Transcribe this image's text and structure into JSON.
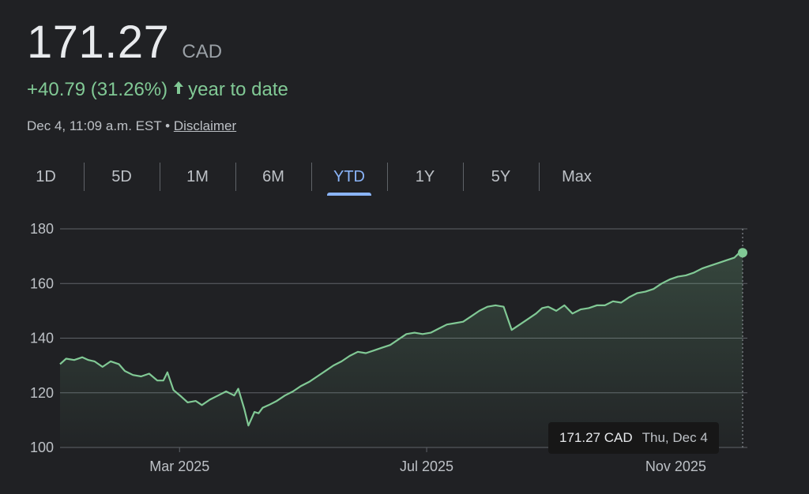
{
  "quote": {
    "price": "171.27",
    "currency": "CAD",
    "change": "+40.79 (31.26%)",
    "change_period": "year to date",
    "timestamp": "Dec 4, 11:09 a.m. EST",
    "separator": "•",
    "disclaimer": "Disclaimer"
  },
  "tabs": [
    {
      "label": "1D",
      "active": false
    },
    {
      "label": "5D",
      "active": false
    },
    {
      "label": "1M",
      "active": false
    },
    {
      "label": "6M",
      "active": false
    },
    {
      "label": "YTD",
      "active": true
    },
    {
      "label": "1Y",
      "active": false
    },
    {
      "label": "5Y",
      "active": false
    },
    {
      "label": "Max",
      "active": false
    }
  ],
  "tooltip": {
    "value": "171.27 CAD",
    "date": "Thu, Dec 4"
  },
  "colors": {
    "background": "#202124",
    "line": "#81c995",
    "positive": "#81c995",
    "active_tab": "#8ab4f8",
    "grid": "#5f6368"
  },
  "chart_data": {
    "type": "area",
    "ylim": [
      100,
      180
    ],
    "yticks": [
      180,
      160,
      140,
      120,
      100
    ],
    "xlim": [
      "2025-01-01",
      "2025-12-04"
    ],
    "xticks": [
      {
        "label": "Mar 2025",
        "date": "2025-03-01"
      },
      {
        "label": "Jul 2025",
        "date": "2025-07-01"
      },
      {
        "label": "Nov 2025",
        "date": "2025-11-01"
      }
    ],
    "grid": true,
    "series": [
      {
        "x": [
          "2025-01-01",
          "2025-01-04",
          "2025-01-08",
          "2025-01-12",
          "2025-01-15",
          "2025-01-18",
          "2025-01-22",
          "2025-01-26",
          "2025-01-30",
          "2025-02-02",
          "2025-02-06",
          "2025-02-10",
          "2025-02-14",
          "2025-02-18",
          "2025-02-21",
          "2025-02-23",
          "2025-02-26",
          "2025-03-02",
          "2025-03-05",
          "2025-03-09",
          "2025-03-12",
          "2025-03-16",
          "2025-03-20",
          "2025-03-24",
          "2025-03-28",
          "2025-03-30",
          "2025-04-02",
          "2025-04-04",
          "2025-04-07",
          "2025-04-09",
          "2025-04-11",
          "2025-04-14",
          "2025-04-18",
          "2025-04-22",
          "2025-04-26",
          "2025-04-30",
          "2025-05-04",
          "2025-05-08",
          "2025-05-12",
          "2025-05-16",
          "2025-05-20",
          "2025-05-24",
          "2025-05-28",
          "2025-06-01",
          "2025-06-05",
          "2025-06-09",
          "2025-06-13",
          "2025-06-17",
          "2025-06-21",
          "2025-06-25",
          "2025-06-29",
          "2025-07-03",
          "2025-07-07",
          "2025-07-11",
          "2025-07-15",
          "2025-07-19",
          "2025-07-23",
          "2025-07-27",
          "2025-07-31",
          "2025-08-04",
          "2025-08-08",
          "2025-08-12",
          "2025-08-16",
          "2025-08-20",
          "2025-08-24",
          "2025-08-27",
          "2025-08-30",
          "2025-09-03",
          "2025-09-07",
          "2025-09-11",
          "2025-09-15",
          "2025-09-19",
          "2025-09-23",
          "2025-09-27",
          "2025-10-01",
          "2025-10-05",
          "2025-10-09",
          "2025-10-13",
          "2025-10-17",
          "2025-10-21",
          "2025-10-25",
          "2025-10-29",
          "2025-11-02",
          "2025-11-06",
          "2025-11-10",
          "2025-11-14",
          "2025-11-18",
          "2025-11-22",
          "2025-11-26",
          "2025-11-30",
          "2025-12-02",
          "2025-12-04"
        ],
        "y": [
          130.5,
          132.5,
          132.0,
          133.0,
          132.0,
          131.5,
          129.5,
          131.5,
          130.5,
          128.0,
          126.5,
          126.0,
          127.0,
          124.5,
          124.5,
          127.5,
          121.0,
          118.5,
          116.5,
          117.0,
          115.5,
          117.5,
          119.0,
          120.5,
          119.0,
          121.5,
          114.0,
          108.0,
          113.0,
          112.5,
          114.5,
          115.5,
          117.0,
          119.0,
          120.5,
          122.5,
          124.0,
          126.0,
          128.0,
          130.0,
          131.5,
          133.5,
          135.0,
          134.5,
          135.5,
          136.5,
          137.5,
          139.5,
          141.5,
          142.0,
          141.5,
          142.0,
          143.5,
          145.0,
          145.5,
          146.0,
          148.0,
          150.0,
          151.5,
          152.0,
          151.5,
          143.0,
          145.0,
          147.0,
          149.0,
          151.0,
          151.5,
          150.0,
          152.0,
          149.0,
          150.5,
          151.0,
          152.0,
          152.0,
          153.5,
          153.0,
          155.0,
          156.5,
          157.0,
          158.0,
          160.0,
          161.5,
          162.5,
          163.0,
          164.0,
          165.5,
          166.5,
          167.5,
          168.5,
          169.5,
          171.0,
          171.27
        ]
      }
    ]
  }
}
